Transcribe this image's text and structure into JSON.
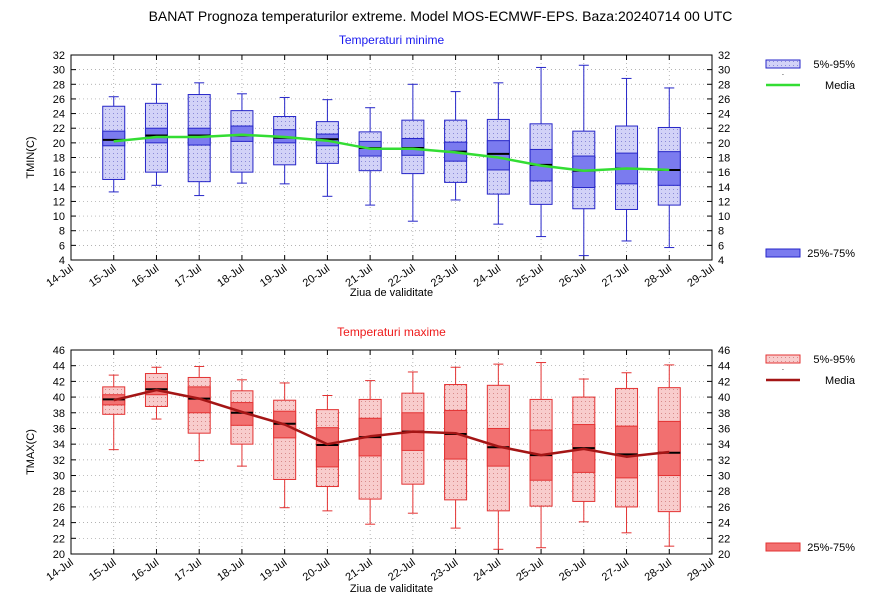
{
  "title": "BANAT  Prognoza temperaturilor extreme.  Model MOS-ECMWF-EPS. Baza:20240714 00 UTC",
  "chart_data": [
    {
      "type": "box",
      "title": "Temperaturi minime",
      "ylabel": "TMIN(C)",
      "xlabel": "Ziua de validitate",
      "ylim": [
        4,
        32
      ],
      "yticks": [
        4,
        6,
        8,
        10,
        12,
        14,
        16,
        18,
        20,
        22,
        24,
        26,
        28,
        30,
        32
      ],
      "categories": [
        "14-Jul",
        "15-Jul",
        "16-Jul",
        "17-Jul",
        "18-Jul",
        "19-Jul",
        "20-Jul",
        "21-Jul",
        "22-Jul",
        "23-Jul",
        "24-Jul",
        "25-Jul",
        "26-Jul",
        "27-Jul",
        "28-Jul",
        "29-Jul"
      ],
      "grid": true,
      "legend": {
        "outer": "5%-95%",
        "mean": "Media",
        "inner": "25%-75%",
        "position": "right"
      },
      "colors": {
        "inner_fill": "#7b7bef",
        "outer_fill": "#d2d2f7",
        "edge": "#2626c8",
        "mean": "#33dd33",
        "title": "#1a1aee"
      },
      "series": [
        {
          "x": "15-Jul",
          "min": 13.3,
          "p5": 15,
          "p25": 19.6,
          "median": 20.4,
          "p75": 21.6,
          "p95": 25,
          "max": 26.3,
          "mean": 20.2
        },
        {
          "x": "16-Jul",
          "min": 14.2,
          "p5": 16,
          "p25": 20,
          "median": 21,
          "p75": 22,
          "p95": 25.4,
          "max": 28,
          "mean": 20.8
        },
        {
          "x": "17-Jul",
          "min": 12.8,
          "p5": 14.7,
          "p25": 19.7,
          "median": 21,
          "p75": 22,
          "p95": 26.6,
          "max": 28.2,
          "mean": 20.8
        },
        {
          "x": "18-Jul",
          "min": 14.5,
          "p5": 16,
          "p25": 20.2,
          "median": 21,
          "p75": 22.3,
          "p95": 24.4,
          "max": 26.7,
          "mean": 21.1
        },
        {
          "x": "19-Jul",
          "min": 14.4,
          "p5": 17,
          "p25": 20,
          "median": 20.7,
          "p75": 21.8,
          "p95": 23.6,
          "max": 26.2,
          "mean": 20.8
        },
        {
          "x": "20-Jul",
          "min": 12.7,
          "p5": 17.2,
          "p25": 19.6,
          "median": 20.5,
          "p75": 21.2,
          "p95": 22.9,
          "max": 25.9,
          "mean": 20.3
        },
        {
          "x": "21-Jul",
          "min": 11.5,
          "p5": 16.2,
          "p25": 18.2,
          "median": 19.3,
          "p75": 20.2,
          "p95": 21.5,
          "max": 24.8,
          "mean": 19.2
        },
        {
          "x": "22-Jul",
          "min": 9.3,
          "p5": 15.8,
          "p25": 18.3,
          "median": 19.3,
          "p75": 20.6,
          "p95": 23.1,
          "max": 28,
          "mean": 19.2
        },
        {
          "x": "23-Jul",
          "min": 12.2,
          "p5": 14.6,
          "p25": 17.5,
          "median": 18.8,
          "p75": 20.1,
          "p95": 23.1,
          "max": 27,
          "mean": 18.7
        },
        {
          "x": "24-Jul",
          "min": 8.9,
          "p5": 13,
          "p25": 16.3,
          "median": 18.5,
          "p75": 20.3,
          "p95": 23.2,
          "max": 28.2,
          "mean": 18
        },
        {
          "x": "25-Jul",
          "min": 7.2,
          "p5": 11.6,
          "p25": 14.8,
          "median": 17,
          "p75": 19.1,
          "p95": 22.6,
          "max": 30.3,
          "mean": 16.9
        },
        {
          "x": "26-Jul",
          "min": 4.6,
          "p5": 11,
          "p25": 13.9,
          "median": 16.2,
          "p75": 18.2,
          "p95": 21.6,
          "max": 30.6,
          "mean": 16.2
        },
        {
          "x": "27-Jul",
          "min": 6.6,
          "p5": 10.9,
          "p25": 14.4,
          "median": 16.5,
          "p75": 18.6,
          "p95": 22.3,
          "max": 28.8,
          "mean": 16.5
        },
        {
          "x": "28-Jul",
          "min": 5.7,
          "p5": 11.5,
          "p25": 14.2,
          "median": 16.3,
          "p75": 18.8,
          "p95": 22.1,
          "max": 27.5,
          "mean": 16.3
        }
      ]
    },
    {
      "type": "box",
      "title": "Temperaturi maxime",
      "ylabel": "TMAX(C)",
      "xlabel": "Ziua de validitate",
      "ylim": [
        20,
        46
      ],
      "yticks": [
        20,
        22,
        24,
        26,
        28,
        30,
        32,
        34,
        36,
        38,
        40,
        42,
        44,
        46
      ],
      "categories": [
        "14-Jul",
        "15-Jul",
        "16-Jul",
        "17-Jul",
        "18-Jul",
        "19-Jul",
        "20-Jul",
        "21-Jul",
        "22-Jul",
        "23-Jul",
        "24-Jul",
        "25-Jul",
        "26-Jul",
        "27-Jul",
        "28-Jul",
        "29-Jul"
      ],
      "grid": true,
      "legend": {
        "outer": "5%-95%",
        "mean": "Media",
        "inner": "25%-75%",
        "position": "right"
      },
      "colors": {
        "inner_fill": "#f27070",
        "outer_fill": "#f8cccc",
        "edge": "#e33333",
        "mean": "#a41515",
        "title": "#ee1a1a"
      },
      "series": [
        {
          "x": "15-Jul",
          "min": 33.3,
          "p5": 37.8,
          "p25": 39,
          "median": 39.7,
          "p75": 40.3,
          "p95": 41.3,
          "max": 42.8,
          "mean": 39.6
        },
        {
          "x": "16-Jul",
          "min": 37.2,
          "p5": 38.8,
          "p25": 40.3,
          "median": 41,
          "p75": 42,
          "p95": 43,
          "max": 43.8,
          "mean": 40.9
        },
        {
          "x": "17-Jul",
          "min": 31.9,
          "p5": 35.4,
          "p25": 38,
          "median": 39.8,
          "p75": 41.3,
          "p95": 42.5,
          "max": 43.9,
          "mean": 39.8
        },
        {
          "x": "18-Jul",
          "min": 31.2,
          "p5": 34,
          "p25": 36.4,
          "median": 38,
          "p75": 39.3,
          "p95": 40.8,
          "max": 42.2,
          "mean": 38.1
        },
        {
          "x": "19-Jul",
          "min": 25.9,
          "p5": 29.5,
          "p25": 34.8,
          "median": 36.6,
          "p75": 38.2,
          "p95": 39.6,
          "max": 41.8,
          "mean": 36.5
        },
        {
          "x": "20-Jul",
          "min": 25.5,
          "p5": 28.6,
          "p25": 31.1,
          "median": 33.9,
          "p75": 36.1,
          "p95": 38.4,
          "max": 40.2,
          "mean": 34
        },
        {
          "x": "21-Jul",
          "min": 23.8,
          "p5": 27,
          "p25": 32.5,
          "median": 34.9,
          "p75": 37.3,
          "p95": 39.7,
          "max": 42.1,
          "mean": 35
        },
        {
          "x": "22-Jul",
          "min": 25.2,
          "p5": 28.9,
          "p25": 33.2,
          "median": 35.6,
          "p75": 38,
          "p95": 40.5,
          "max": 43.2,
          "mean": 35.6
        },
        {
          "x": "23-Jul",
          "min": 23.3,
          "p5": 26.9,
          "p25": 32.1,
          "median": 35.3,
          "p75": 38.3,
          "p95": 41.6,
          "max": 43.8,
          "mean": 35.4
        },
        {
          "x": "24-Jul",
          "min": 20.6,
          "p5": 25.5,
          "p25": 31.2,
          "median": 33.6,
          "p75": 36,
          "p95": 41.5,
          "max": 44.2,
          "mean": 33.7
        },
        {
          "x": "25-Jul",
          "min": 20.8,
          "p5": 26.1,
          "p25": 29.4,
          "median": 32.6,
          "p75": 35.8,
          "p95": 39.7,
          "max": 44.4,
          "mean": 32.6
        },
        {
          "x": "26-Jul",
          "min": 24.1,
          "p5": 26.7,
          "p25": 30.4,
          "median": 33.5,
          "p75": 36.5,
          "p95": 40,
          "max": 42.3,
          "mean": 33.4
        },
        {
          "x": "27-Jul",
          "min": 22.7,
          "p5": 26,
          "p25": 29.7,
          "median": 32.7,
          "p75": 36.3,
          "p95": 41.1,
          "max": 43.1,
          "mean": 32.4
        },
        {
          "x": "28-Jul",
          "min": 21,
          "p5": 25.4,
          "p25": 30,
          "median": 32.9,
          "p75": 36.9,
          "p95": 41.2,
          "max": 44.1,
          "mean": 33
        }
      ]
    }
  ]
}
